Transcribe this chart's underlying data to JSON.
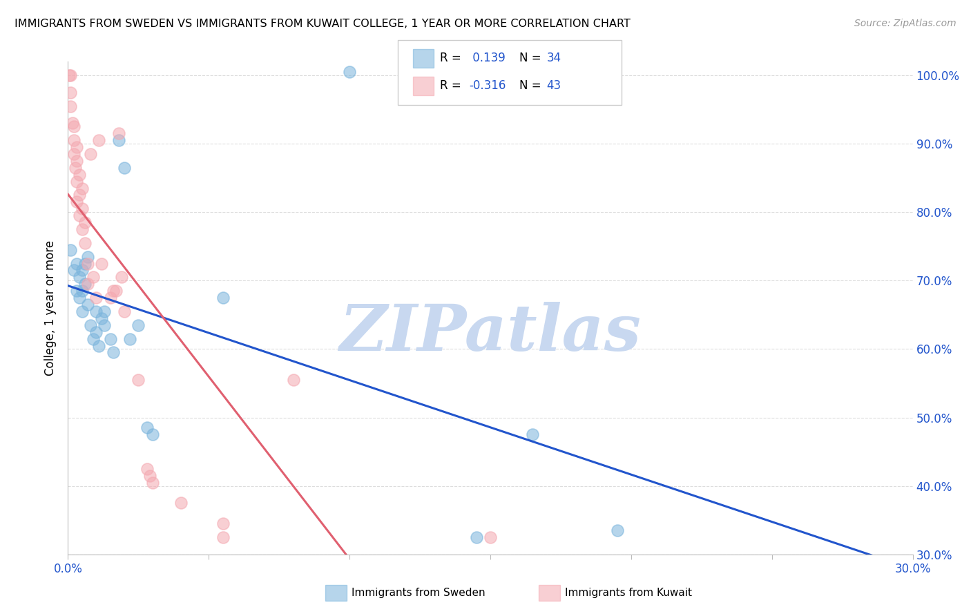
{
  "title": "IMMIGRANTS FROM SWEDEN VS IMMIGRANTS FROM KUWAIT COLLEGE, 1 YEAR OR MORE CORRELATION CHART",
  "source": "Source: ZipAtlas.com",
  "ylabel": "College, 1 year or more",
  "xlim": [
    0.0,
    0.3
  ],
  "ylim": [
    0.3,
    1.02
  ],
  "xticks": [
    0.0,
    0.05,
    0.1,
    0.15,
    0.2,
    0.25,
    0.3
  ],
  "xticklabels": [
    "0.0%",
    "",
    "",
    "",
    "",
    "",
    "30.0%"
  ],
  "yticks": [
    0.3,
    0.4,
    0.5,
    0.6,
    0.7,
    0.8,
    0.9,
    1.0
  ],
  "yticklabels": [
    "30.0%",
    "40.0%",
    "50.0%",
    "60.0%",
    "70.0%",
    "80.0%",
    "90.0%",
    "100.0%"
  ],
  "sweden_color": "#7ab4dc",
  "kuwait_color": "#f4a8b0",
  "sweden_line_color": "#2255cc",
  "kuwait_line_color": "#e06070",
  "sweden_R": 0.139,
  "sweden_N": 34,
  "kuwait_R": -0.316,
  "kuwait_N": 43,
  "sweden_scatter": [
    [
      0.001,
      0.745
    ],
    [
      0.002,
      0.715
    ],
    [
      0.003,
      0.725
    ],
    [
      0.003,
      0.685
    ],
    [
      0.004,
      0.705
    ],
    [
      0.004,
      0.675
    ],
    [
      0.005,
      0.715
    ],
    [
      0.005,
      0.685
    ],
    [
      0.005,
      0.655
    ],
    [
      0.006,
      0.725
    ],
    [
      0.006,
      0.695
    ],
    [
      0.007,
      0.735
    ],
    [
      0.007,
      0.665
    ],
    [
      0.008,
      0.635
    ],
    [
      0.009,
      0.615
    ],
    [
      0.01,
      0.655
    ],
    [
      0.01,
      0.625
    ],
    [
      0.011,
      0.605
    ],
    [
      0.012,
      0.645
    ],
    [
      0.013,
      0.655
    ],
    [
      0.013,
      0.635
    ],
    [
      0.015,
      0.615
    ],
    [
      0.016,
      0.595
    ],
    [
      0.018,
      0.905
    ],
    [
      0.02,
      0.865
    ],
    [
      0.022,
      0.615
    ],
    [
      0.025,
      0.635
    ],
    [
      0.028,
      0.485
    ],
    [
      0.03,
      0.475
    ],
    [
      0.055,
      0.675
    ],
    [
      0.1,
      1.005
    ],
    [
      0.145,
      0.325
    ],
    [
      0.165,
      0.475
    ],
    [
      0.195,
      0.335
    ]
  ],
  "kuwait_scatter": [
    [
      0.0005,
      1.0
    ],
    [
      0.001,
      1.0
    ],
    [
      0.001,
      0.975
    ],
    [
      0.001,
      0.955
    ],
    [
      0.0015,
      0.93
    ],
    [
      0.002,
      0.925
    ],
    [
      0.002,
      0.905
    ],
    [
      0.002,
      0.885
    ],
    [
      0.0025,
      0.865
    ],
    [
      0.003,
      0.895
    ],
    [
      0.003,
      0.875
    ],
    [
      0.003,
      0.845
    ],
    [
      0.003,
      0.815
    ],
    [
      0.004,
      0.855
    ],
    [
      0.004,
      0.825
    ],
    [
      0.004,
      0.795
    ],
    [
      0.005,
      0.835
    ],
    [
      0.005,
      0.805
    ],
    [
      0.005,
      0.775
    ],
    [
      0.006,
      0.785
    ],
    [
      0.006,
      0.755
    ],
    [
      0.007,
      0.725
    ],
    [
      0.007,
      0.695
    ],
    [
      0.008,
      0.885
    ],
    [
      0.009,
      0.705
    ],
    [
      0.01,
      0.675
    ],
    [
      0.011,
      0.905
    ],
    [
      0.012,
      0.725
    ],
    [
      0.015,
      0.675
    ],
    [
      0.016,
      0.685
    ],
    [
      0.017,
      0.685
    ],
    [
      0.018,
      0.915
    ],
    [
      0.019,
      0.705
    ],
    [
      0.02,
      0.655
    ],
    [
      0.025,
      0.555
    ],
    [
      0.028,
      0.425
    ],
    [
      0.029,
      0.415
    ],
    [
      0.03,
      0.405
    ],
    [
      0.04,
      0.375
    ],
    [
      0.055,
      0.345
    ],
    [
      0.055,
      0.325
    ],
    [
      0.08,
      0.555
    ],
    [
      0.15,
      0.325
    ]
  ],
  "watermark": "ZIPatlas",
  "watermark_color": "#c8d8f0",
  "legend_sweden_label": "Immigrants from Sweden",
  "legend_kuwait_label": "Immigrants from Kuwait",
  "r_n_color": "#2255cc",
  "tick_color": "#2255cc",
  "grid_color": "#dddddd"
}
